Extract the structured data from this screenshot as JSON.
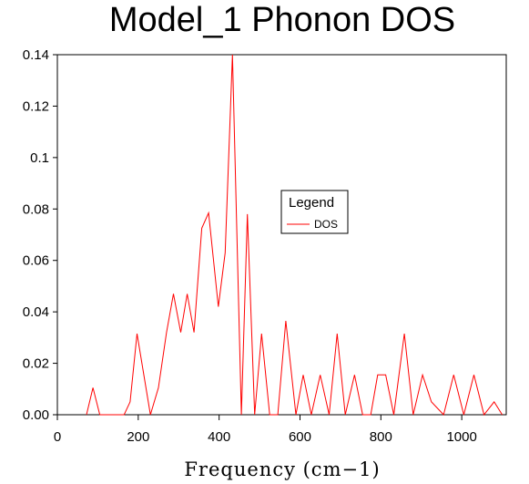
{
  "chart_data": {
    "type": "line",
    "title": "Model_1 Phonon DOS",
    "xlabel": "Frequency (cm−1)",
    "ylabel": "",
    "xlim": [
      0,
      1110
    ],
    "ylim": [
      0,
      0.14
    ],
    "x_ticks": [
      0,
      200,
      400,
      600,
      800,
      1000
    ],
    "x_tick_labels": [
      "0",
      "200",
      "400",
      "600",
      "800",
      "1000"
    ],
    "y_ticks": [
      0,
      0.02,
      0.04,
      0.06,
      0.08,
      0.1,
      0.12,
      0.14
    ],
    "y_tick_labels": [
      "0.00",
      "0.02",
      "0.04",
      "0.06",
      "0.08",
      "0.1",
      "0.12",
      "0.14"
    ],
    "grid": false,
    "legend": {
      "title": "Legend",
      "placement": "center-right"
    },
    "series": [
      {
        "name": "DOS",
        "color": "#ff0000",
        "x": [
          72,
          88,
          105,
          165,
          180,
          197,
          230,
          250,
          270,
          287,
          305,
          321,
          338,
          357,
          374,
          398,
          415,
          433,
          455,
          470,
          488,
          505,
          525,
          545,
          565,
          590,
          608,
          628,
          650,
          672,
          692,
          712,
          735,
          755,
          775,
          792,
          812,
          832,
          858,
          880,
          903,
          925,
          955,
          980,
          1005,
          1030,
          1055,
          1080,
          1100
        ],
        "values": [
          0,
          0.0105,
          0,
          0,
          0.005,
          0.0315,
          0,
          0.0105,
          0.032,
          0.047,
          0.032,
          0.047,
          0.032,
          0.0725,
          0.0785,
          0.042,
          0.063,
          0.14,
          0,
          0.078,
          0,
          0.0315,
          0,
          0,
          0.0365,
          0,
          0.0155,
          0,
          0.0155,
          0,
          0.0315,
          0,
          0.0155,
          0,
          0,
          0.0155,
          0.0155,
          0,
          0.0315,
          0,
          0.0155,
          0.005,
          0,
          0.0155,
          0,
          0.0155,
          0,
          0.005,
          0
        ]
      }
    ]
  }
}
